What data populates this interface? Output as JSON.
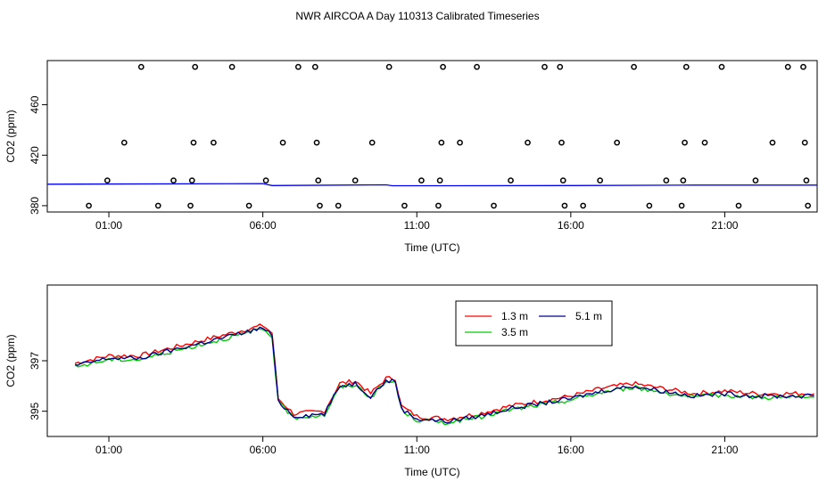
{
  "title": "NWR AIRCOA A  Day 110313  Calibrated Timeseries",
  "chart_data": [
    {
      "type": "scatter",
      "xlabel": "Time (UTC)",
      "ylabel": "CO2 (ppm)",
      "xlim": [
        -1.0,
        24.0
      ],
      "ylim": [
        375,
        495
      ],
      "xticks": [
        {
          "value": 1,
          "label": "01:00"
        },
        {
          "value": 6,
          "label": "06:00"
        },
        {
          "value": 11,
          "label": "11:00"
        },
        {
          "value": 16,
          "label": "16:00"
        },
        {
          "value": 21,
          "label": "21:00"
        }
      ],
      "yticks": [
        {
          "value": 380,
          "label": "380"
        },
        {
          "value": 420,
          "label": "420"
        },
        {
          "value": 460,
          "label": "460"
        }
      ],
      "points": [
        [
          0.35,
          380
        ],
        [
          0.95,
          400
        ],
        [
          1.5,
          430
        ],
        [
          2.05,
          490
        ],
        [
          2.6,
          380
        ],
        [
          3.1,
          400
        ],
        [
          3.65,
          380
        ],
        [
          3.7,
          400
        ],
        [
          3.75,
          430
        ],
        [
          3.8,
          490
        ],
        [
          4.4,
          430
        ],
        [
          5.0,
          490
        ],
        [
          5.55,
          380
        ],
        [
          6.1,
          400
        ],
        [
          6.65,
          430
        ],
        [
          7.15,
          490
        ],
        [
          7.7,
          490
        ],
        [
          7.75,
          430
        ],
        [
          7.8,
          400
        ],
        [
          7.85,
          380
        ],
        [
          8.45,
          380
        ],
        [
          9.0,
          400
        ],
        [
          9.55,
          430
        ],
        [
          10.1,
          490
        ],
        [
          10.6,
          380
        ],
        [
          11.15,
          400
        ],
        [
          11.7,
          380
        ],
        [
          11.75,
          400
        ],
        [
          11.8,
          430
        ],
        [
          11.85,
          490
        ],
        [
          12.4,
          430
        ],
        [
          12.95,
          490
        ],
        [
          13.5,
          380
        ],
        [
          14.05,
          400
        ],
        [
          14.6,
          430
        ],
        [
          15.15,
          490
        ],
        [
          15.65,
          490
        ],
        [
          15.7,
          430
        ],
        [
          15.75,
          400
        ],
        [
          15.8,
          380
        ],
        [
          16.4,
          380
        ],
        [
          16.95,
          400
        ],
        [
          17.5,
          430
        ],
        [
          18.05,
          490
        ],
        [
          18.55,
          380
        ],
        [
          19.1,
          400
        ],
        [
          19.6,
          380
        ],
        [
          19.65,
          400
        ],
        [
          19.7,
          430
        ],
        [
          19.75,
          490
        ],
        [
          20.35,
          430
        ],
        [
          20.9,
          490
        ],
        [
          21.45,
          380
        ],
        [
          22.0,
          400
        ],
        [
          22.55,
          430
        ],
        [
          23.05,
          490
        ],
        [
          23.55,
          490
        ],
        [
          23.6,
          430
        ],
        [
          23.65,
          400
        ],
        [
          23.7,
          380
        ]
      ],
      "series": [
        {
          "values": [
            [
              -1,
              397.0
            ],
            [
              6,
              397.5
            ],
            [
              6.3,
              396.0
            ],
            [
              10.0,
              396.5
            ],
            [
              10.2,
              395.8
            ],
            [
              12,
              395.8
            ],
            [
              16,
              396.0
            ],
            [
              20,
              396.3
            ],
            [
              24,
              396.3
            ]
          ],
          "color": "#0000ff"
        }
      ]
    },
    {
      "type": "line",
      "xlabel": "Time (UTC)",
      "ylabel": "CO2 (ppm)",
      "xlim": [
        -1.0,
        24.0
      ],
      "ylim": [
        394.0,
        400.0
      ],
      "xticks": [
        {
          "value": 1,
          "label": "01:00"
        },
        {
          "value": 6,
          "label": "06:00"
        },
        {
          "value": 11,
          "label": "11:00"
        },
        {
          "value": 16,
          "label": "16:00"
        },
        {
          "value": 21,
          "label": "21:00"
        }
      ],
      "yticks": [
        {
          "value": 395,
          "label": "395"
        },
        {
          "value": 397,
          "label": "397"
        }
      ],
      "legend": "top-right",
      "series": [
        {
          "name": "1.3 m",
          "color": "#ff0000",
          "offset": 0.1,
          "values": [
            [
              -0.1,
              396.8
            ],
            [
              1,
              397.1
            ],
            [
              2,
              397.1
            ],
            [
              3,
              397.4
            ],
            [
              4,
              397.7
            ],
            [
              5,
              398.0
            ],
            [
              6,
              398.3
            ],
            [
              6.3,
              398.0
            ],
            [
              6.5,
              395.4
            ],
            [
              7,
              394.8
            ],
            [
              8,
              394.9
            ],
            [
              8.5,
              396.0
            ],
            [
              9,
              396.1
            ],
            [
              9.5,
              395.6
            ],
            [
              10,
              396.2
            ],
            [
              10.3,
              396.2
            ],
            [
              10.5,
              395.1
            ],
            [
              11,
              394.7
            ],
            [
              12,
              394.6
            ],
            [
              13,
              394.8
            ],
            [
              14,
              395.1
            ],
            [
              15,
              395.3
            ],
            [
              16,
              395.5
            ],
            [
              17,
              395.8
            ],
            [
              18,
              396.0
            ],
            [
              19,
              395.8
            ],
            [
              20,
              395.6
            ],
            [
              21,
              395.7
            ],
            [
              22,
              395.6
            ],
            [
              23,
              395.6
            ],
            [
              23.9,
              395.6
            ]
          ]
        },
        {
          "name": "5.1 m",
          "color": "#00008b",
          "offset": 0.0,
          "values": [
            [
              -0.1,
              396.8
            ],
            [
              1,
              397.1
            ],
            [
              2,
              397.1
            ],
            [
              3,
              397.4
            ],
            [
              4,
              397.7
            ],
            [
              5,
              398.0
            ],
            [
              6,
              398.3
            ],
            [
              6.3,
              398.0
            ],
            [
              6.5,
              395.4
            ],
            [
              7,
              394.8
            ],
            [
              8,
              394.9
            ],
            [
              8.5,
              396.0
            ],
            [
              9,
              396.1
            ],
            [
              9.5,
              395.6
            ],
            [
              10,
              396.2
            ],
            [
              10.3,
              396.2
            ],
            [
              10.5,
              395.1
            ],
            [
              11,
              394.7
            ],
            [
              12,
              394.6
            ],
            [
              13,
              394.8
            ],
            [
              14,
              395.1
            ],
            [
              15,
              395.3
            ],
            [
              16,
              395.5
            ],
            [
              17,
              395.8
            ],
            [
              18,
              396.0
            ],
            [
              19,
              395.8
            ],
            [
              20,
              395.6
            ],
            [
              21,
              395.7
            ],
            [
              22,
              395.6
            ],
            [
              23,
              395.6
            ],
            [
              23.9,
              395.6
            ]
          ]
        },
        {
          "name": "3.5 m",
          "color": "#00cc00",
          "offset": -0.05,
          "values": [
            [
              -0.1,
              396.8
            ],
            [
              1,
              397.1
            ],
            [
              2,
              397.1
            ],
            [
              3,
              397.4
            ],
            [
              4,
              397.7
            ],
            [
              5,
              398.0
            ],
            [
              6,
              398.3
            ],
            [
              6.3,
              398.0
            ],
            [
              6.5,
              395.4
            ],
            [
              7,
              394.8
            ],
            [
              8,
              394.9
            ],
            [
              8.5,
              396.0
            ],
            [
              9,
              396.1
            ],
            [
              9.5,
              395.6
            ],
            [
              10,
              396.2
            ],
            [
              10.3,
              396.2
            ],
            [
              10.5,
              395.1
            ],
            [
              11,
              394.7
            ],
            [
              12,
              394.6
            ],
            [
              13,
              394.8
            ],
            [
              14,
              395.1
            ],
            [
              15,
              395.3
            ],
            [
              16,
              395.5
            ],
            [
              17,
              395.8
            ],
            [
              18,
              396.0
            ],
            [
              19,
              395.8
            ],
            [
              20,
              395.6
            ],
            [
              21,
              395.7
            ],
            [
              22,
              395.6
            ],
            [
              23,
              395.6
            ],
            [
              23.9,
              395.6
            ]
          ]
        }
      ]
    }
  ]
}
